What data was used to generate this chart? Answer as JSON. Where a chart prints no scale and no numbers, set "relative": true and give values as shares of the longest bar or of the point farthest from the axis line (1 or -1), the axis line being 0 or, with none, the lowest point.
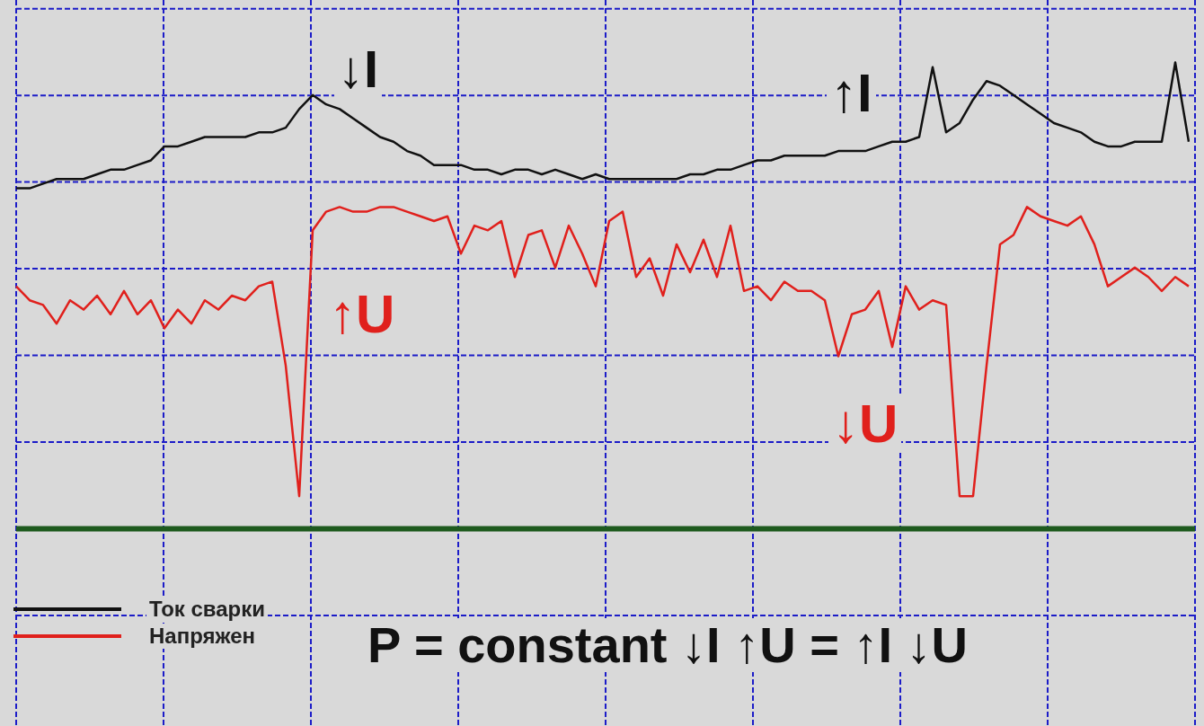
{
  "chart_data": {
    "type": "line",
    "relative": true,
    "grid": true,
    "legend": "bottom left",
    "marker": "none",
    "categories": [
      null,
      null,
      null,
      null,
      null,
      null,
      null,
      null,
      null,
      null,
      null,
      null,
      null,
      null,
      null,
      null,
      null,
      null,
      null,
      null,
      null,
      null,
      null,
      null,
      null,
      null,
      null,
      null,
      null,
      null,
      null,
      null,
      null,
      null,
      null,
      null,
      null,
      null,
      null,
      null,
      null,
      null,
      null,
      null,
      null,
      null,
      null,
      null,
      null,
      null,
      null,
      null,
      null,
      null,
      null,
      null,
      null,
      null,
      null,
      null,
      null,
      null,
      null,
      null,
      null,
      null,
      null,
      null,
      null,
      null,
      null,
      null,
      null,
      null,
      null,
      null,
      null,
      null,
      null,
      null,
      null,
      null,
      null,
      null,
      null,
      null,
      null,
      null
    ],
    "series": [
      {
        "name": "Ток сварки",
        "color": "#111111",
        "values": [
          0.73,
          0.73,
          0.74,
          0.75,
          0.75,
          0.75,
          0.76,
          0.77,
          0.77,
          0.78,
          0.79,
          0.82,
          0.82,
          0.83,
          0.84,
          0.84,
          0.84,
          0.84,
          0.85,
          0.85,
          0.86,
          0.9,
          0.93,
          0.91,
          0.9,
          0.88,
          0.86,
          0.84,
          0.83,
          0.81,
          0.8,
          0.78,
          0.78,
          0.78,
          0.77,
          0.77,
          0.76,
          0.77,
          0.77,
          0.76,
          0.77,
          0.76,
          0.75,
          0.76,
          0.75,
          0.75,
          0.75,
          0.75,
          0.75,
          0.75,
          0.76,
          0.76,
          0.77,
          0.77,
          0.78,
          0.79,
          0.79,
          0.8,
          0.8,
          0.8,
          0.8,
          0.81,
          0.81,
          0.81,
          0.82,
          0.83,
          0.83,
          0.84,
          0.99,
          0.85,
          0.87,
          0.92,
          0.96,
          0.95,
          0.93,
          0.91,
          0.89,
          0.87,
          0.86,
          0.85,
          0.83,
          0.82,
          0.82,
          0.83,
          0.83,
          0.83,
          1.0,
          0.83
        ]
      },
      {
        "name": "Напряжен",
        "color": "#e0201c",
        "values": [
          0.52,
          0.49,
          0.48,
          0.44,
          0.49,
          0.47,
          0.5,
          0.46,
          0.51,
          0.46,
          0.49,
          0.43,
          0.47,
          0.44,
          0.49,
          0.47,
          0.5,
          0.49,
          0.52,
          0.53,
          0.35,
          0.07,
          0.64,
          0.68,
          0.69,
          0.68,
          0.68,
          0.69,
          0.69,
          0.68,
          0.67,
          0.66,
          0.67,
          0.59,
          0.65,
          0.64,
          0.66,
          0.54,
          0.63,
          0.64,
          0.56,
          0.65,
          0.59,
          0.52,
          0.66,
          0.68,
          0.54,
          0.58,
          0.5,
          0.61,
          0.55,
          0.62,
          0.54,
          0.65,
          0.51,
          0.52,
          0.49,
          0.53,
          0.51,
          0.51,
          0.49,
          0.37,
          0.46,
          0.47,
          0.51,
          0.39,
          0.52,
          0.47,
          0.49,
          0.48,
          0.07,
          0.07,
          0.35,
          0.61,
          0.63,
          0.69,
          0.67,
          0.66,
          0.65,
          0.67,
          0.61,
          0.52,
          0.54,
          0.56,
          0.54,
          0.51,
          0.54,
          0.52
        ]
      }
    ],
    "annotations": [
      "↓I",
      "↑I",
      "↑U",
      "↓U",
      "P = constant ↓I ↑U = ↑I ↓U"
    ]
  }
}
